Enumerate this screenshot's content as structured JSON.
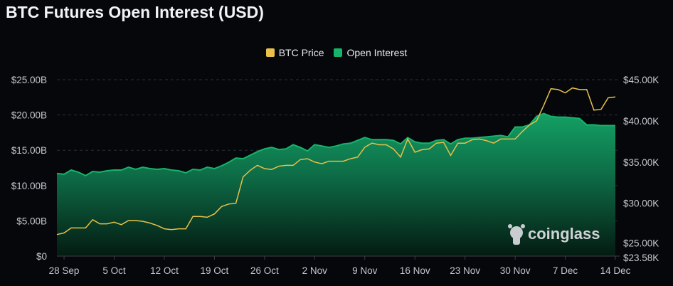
{
  "colors": {
    "price": "#e8c04a",
    "oi": "#17b36b",
    "background": "#05070b"
  },
  "chart_data": {
    "type": "area",
    "title": "BTC Futures Open Interest (USD)",
    "legend": [
      "BTC Price",
      "Open Interest"
    ],
    "legend_position": "top-center",
    "x_start": "27 Sep",
    "x_end": "14 Dec",
    "x_ticks": [
      "28 Sep",
      "5 Oct",
      "12 Oct",
      "19 Oct",
      "26 Oct",
      "2 Nov",
      "9 Nov",
      "16 Nov",
      "23 Nov",
      "30 Nov",
      "7 Dec",
      "14 Dec"
    ],
    "x_tick_day_index": [
      1,
      8,
      15,
      22,
      29,
      36,
      43,
      50,
      57,
      64,
      71,
      78
    ],
    "y_left": {
      "label": "Open Interest (USD)",
      "ylim": [
        0,
        25
      ],
      "unit": "B",
      "ticks": [
        "$0",
        "$5.00B",
        "$10.00B",
        "$15.00B",
        "$20.00B",
        "$25.00B"
      ],
      "tick_values": [
        0,
        5,
        10,
        15,
        20,
        25
      ]
    },
    "y_right": {
      "label": "BTC Price",
      "ylim": [
        23.58,
        45
      ],
      "unit": "K",
      "ticks": [
        "$23.58K",
        "$25.00K",
        "$30.00K",
        "$35.00K",
        "$40.00K",
        "$45.00K"
      ],
      "tick_values": [
        23.58,
        25,
        30,
        35,
        40,
        45
      ]
    },
    "grid": true,
    "series": [
      {
        "name": "Open Interest",
        "axis": "left",
        "unit": "USD billions",
        "values": [
          11.7,
          11.6,
          12.2,
          11.9,
          11.4,
          12.0,
          11.9,
          12.1,
          12.2,
          12.2,
          12.6,
          12.3,
          12.6,
          12.4,
          12.3,
          12.4,
          12.2,
          12.1,
          11.8,
          12.3,
          12.2,
          12.6,
          12.4,
          12.8,
          13.3,
          13.9,
          13.8,
          14.3,
          14.8,
          15.2,
          15.4,
          15.1,
          15.2,
          15.8,
          15.4,
          14.9,
          15.8,
          15.6,
          15.4,
          15.6,
          15.9,
          16.0,
          16.4,
          16.8,
          16.5,
          16.5,
          16.5,
          16.4,
          15.9,
          16.8,
          16.2,
          16.0,
          16.0,
          16.4,
          16.5,
          15.9,
          16.5,
          16.7,
          16.7,
          16.8,
          16.9,
          17.0,
          17.1,
          16.9,
          18.3,
          18.3,
          18.6,
          19.8,
          20.2,
          19.8,
          19.7,
          19.7,
          19.6,
          19.5,
          18.6,
          18.6,
          18.5,
          18.5,
          18.5
        ]
      },
      {
        "name": "BTC Price",
        "axis": "right",
        "unit": "USD thousands",
        "values": [
          26.2,
          26.4,
          27.0,
          27.0,
          27.0,
          28.0,
          27.5,
          27.5,
          27.7,
          27.4,
          27.9,
          27.9,
          27.8,
          27.6,
          27.3,
          26.9,
          26.8,
          26.9,
          26.9,
          28.4,
          28.4,
          28.3,
          28.7,
          29.6,
          29.9,
          30.0,
          33.2,
          34.0,
          34.6,
          34.2,
          34.1,
          34.5,
          34.6,
          34.6,
          35.3,
          35.4,
          35.0,
          34.8,
          35.1,
          35.1,
          35.1,
          35.4,
          35.6,
          36.8,
          37.3,
          37.1,
          37.1,
          36.6,
          35.6,
          37.8,
          36.2,
          36.5,
          36.6,
          37.3,
          37.4,
          35.8,
          37.3,
          37.3,
          37.7,
          37.8,
          37.6,
          37.3,
          37.8,
          37.8,
          37.8,
          38.7,
          39.5,
          40.0,
          41.9,
          43.9,
          43.8,
          43.4,
          44.0,
          43.8,
          43.8,
          41.3,
          41.4,
          42.8,
          42.9
        ]
      }
    ]
  },
  "watermark": "coinglass"
}
